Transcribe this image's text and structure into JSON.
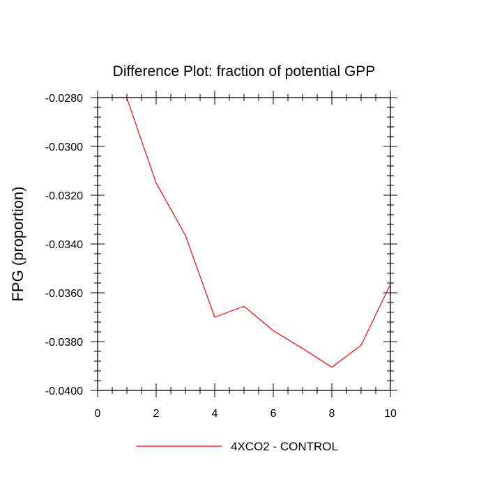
{
  "chart_data": {
    "type": "line",
    "title": "Difference Plot: fraction of potential GPP",
    "xlabel": "",
    "ylabel": "FPG  (proportion)",
    "xlim": [
      0,
      10
    ],
    "ylim": [
      -0.04,
      -0.028
    ],
    "x_major_ticks": [
      0,
      2,
      4,
      6,
      8,
      10
    ],
    "x_tick_labels": [
      "0",
      "2",
      "4",
      "6",
      "8",
      "10"
    ],
    "y_major_ticks": [
      -0.04,
      -0.038,
      -0.036,
      -0.034,
      -0.032,
      -0.03,
      -0.028
    ],
    "y_tick_labels": [
      "-0.0400",
      "-0.0380",
      "-0.0360",
      "-0.0340",
      "-0.0320",
      "-0.0300",
      "-0.0280"
    ],
    "grid": false,
    "legend_position": "bottom-center",
    "series": [
      {
        "name": "4XCO2 - CONTROL",
        "color": "#ff0000",
        "x": [
          1,
          2,
          3,
          4,
          5,
          6,
          7,
          8,
          9,
          10
        ],
        "y": [
          -0.02802,
          -0.0315,
          -0.03365,
          -0.037,
          -0.03655,
          -0.03755,
          -0.03828,
          -0.03905,
          -0.03815,
          -0.03565
        ]
      }
    ]
  }
}
